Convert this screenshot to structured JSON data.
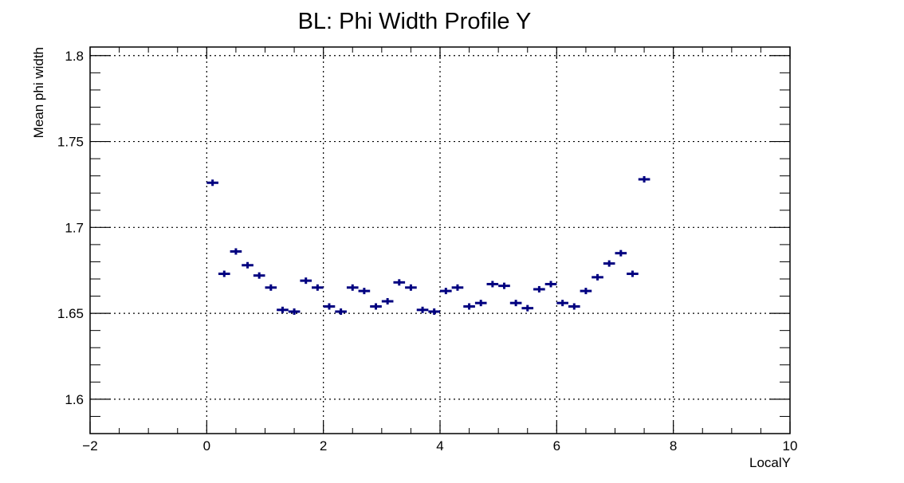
{
  "chart_data": {
    "type": "scatter",
    "title": "BL: Phi Width Profile Y",
    "xlabel": "LocalY",
    "ylabel": "Mean phi width",
    "xlim": [
      -2,
      10
    ],
    "ylim": [
      1.58,
      1.805
    ],
    "grid": true,
    "x_ticks": [
      -2,
      0,
      2,
      4,
      6,
      8,
      10
    ],
    "x_tick_labels": [
      "−2",
      "0",
      "2",
      "4",
      "6",
      "8",
      "10"
    ],
    "y_ticks": [
      1.6,
      1.65,
      1.7,
      1.75,
      1.8
    ],
    "y_tick_labels": [
      "1.6",
      "1.65",
      "1.7",
      "1.75",
      "1.8"
    ],
    "marker_color": "#000080",
    "bin_half_width": 0.1,
    "series": [
      {
        "x": [
          0.1,
          0.3,
          0.5,
          0.7,
          0.9,
          1.1,
          1.3,
          1.5,
          1.7,
          1.9,
          2.1,
          2.3,
          2.5,
          2.7,
          2.9,
          3.1,
          3.3,
          3.5,
          3.7,
          3.9,
          4.1,
          4.3,
          4.5,
          4.7,
          4.9,
          5.1,
          5.3,
          5.5,
          5.7,
          5.9,
          6.1,
          6.3,
          6.5,
          6.7,
          6.9,
          7.1,
          7.3,
          7.5
        ],
        "y": [
          1.726,
          1.673,
          1.686,
          1.678,
          1.672,
          1.665,
          1.652,
          1.651,
          1.669,
          1.665,
          1.654,
          1.651,
          1.665,
          1.663,
          1.654,
          1.657,
          1.668,
          1.665,
          1.652,
          1.651,
          1.663,
          1.665,
          1.654,
          1.656,
          1.667,
          1.666,
          1.656,
          1.653,
          1.664,
          1.667,
          1.656,
          1.654,
          1.663,
          1.671,
          1.679,
          1.685,
          1.673,
          1.728
        ]
      }
    ]
  }
}
